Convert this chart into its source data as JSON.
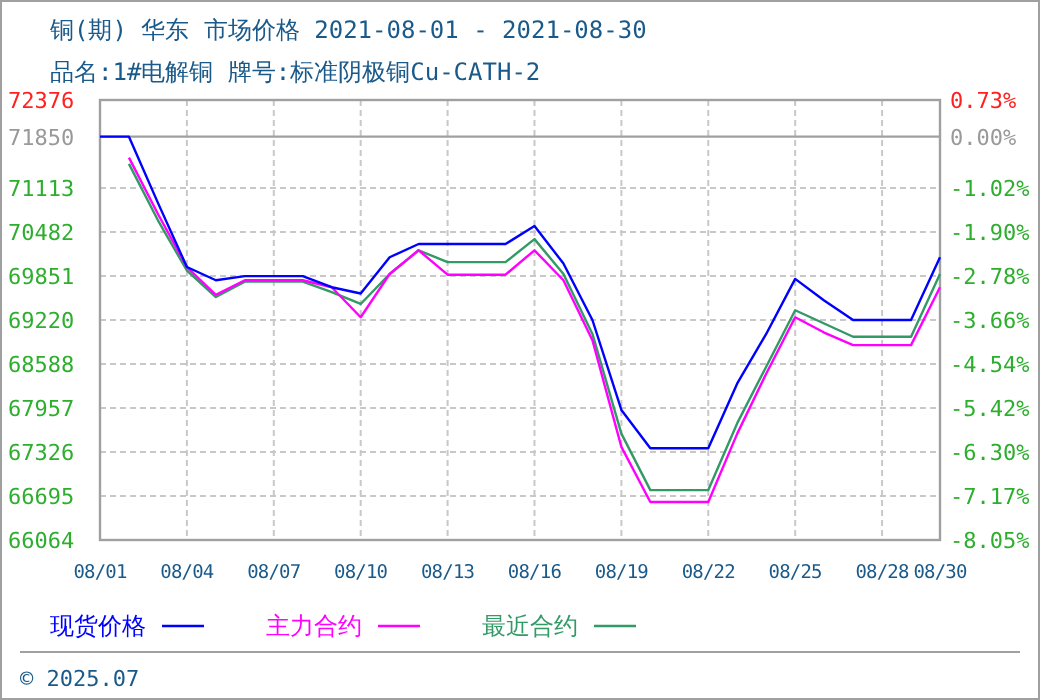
{
  "chart_data": {
    "type": "line",
    "title": "铜(期) 华东 市场价格 2021-08-01 - 2021-08-30",
    "subtitle": "品名:1#电解铜 牌号:标准阴极铜Cu-CATH-2",
    "categories": [
      "08/01",
      null,
      null,
      "08/04",
      null,
      null,
      "08/07",
      null,
      null,
      "08/10",
      null,
      null,
      "08/13",
      null,
      null,
      "08/16",
      null,
      null,
      "08/19",
      null,
      null,
      "08/22",
      null,
      null,
      "08/25",
      null,
      null,
      "08/28",
      null,
      "08/30"
    ],
    "series": [
      {
        "name": "现货价格",
        "color": "#0000ff",
        "values": [
          71850,
          71850,
          70900,
          69980,
          69790,
          69850,
          69850,
          69850,
          69690,
          69600,
          70120,
          70310,
          70310,
          70310,
          70310,
          70570,
          70030,
          69220,
          67930,
          67380,
          67380,
          67380,
          68310,
          69020,
          69810,
          69500,
          69220,
          69220,
          69220,
          70120
        ]
      },
      {
        "name": "主力合约",
        "color": "#ff00ff",
        "values": [
          null,
          71550,
          70740,
          69980,
          69580,
          69790,
          69790,
          69790,
          69690,
          69260,
          69880,
          70220,
          69870,
          69870,
          69870,
          70220,
          69790,
          68930,
          67400,
          66610,
          66610,
          66610,
          67590,
          68450,
          69260,
          69040,
          68860,
          68860,
          68860,
          69690
        ]
      },
      {
        "name": "最近合约",
        "color": "#339966",
        "values": [
          null,
          71460,
          70650,
          69930,
          69550,
          69770,
          69770,
          69770,
          69620,
          69450,
          69880,
          70220,
          70050,
          70050,
          70050,
          70380,
          69880,
          69020,
          67590,
          66780,
          66780,
          66780,
          67740,
          68550,
          69360,
          69170,
          68980,
          68980,
          68980,
          69880
        ]
      }
    ],
    "ylim": [
      66064,
      72376
    ],
    "yticks": [
      66064,
      66695,
      67326,
      67957,
      68588,
      69220,
      69851,
      70482,
      71113,
      71850,
      72376
    ],
    "y2lim": [
      -8.05,
      0.73
    ],
    "y2ticks": [
      {
        "value": -8.05,
        "label": "-8.05%"
      },
      {
        "value": -7.17,
        "label": "-7.17%"
      },
      {
        "value": -6.3,
        "label": "-6.30%"
      },
      {
        "value": -5.42,
        "label": "-5.42%"
      },
      {
        "value": -4.54,
        "label": "-4.54%"
      },
      {
        "value": -3.66,
        "label": "-3.66%"
      },
      {
        "value": -2.78,
        "label": "-2.78%"
      },
      {
        "value": -1.9,
        "label": "-1.90%"
      },
      {
        "value": -1.02,
        "label": "-1.02%"
      },
      {
        "value": 0,
        "label": "0.00%"
      },
      {
        "value": 0.73,
        "label": "0.73%"
      }
    ],
    "ref_lines": [
      {
        "axis": "y",
        "value": 71850,
        "color": "#a0a0a0"
      }
    ],
    "grid": true,
    "legend": "bottom",
    "line_style": "solid",
    "marker": "none",
    "annotations": [
      "© 2025.07"
    ]
  }
}
